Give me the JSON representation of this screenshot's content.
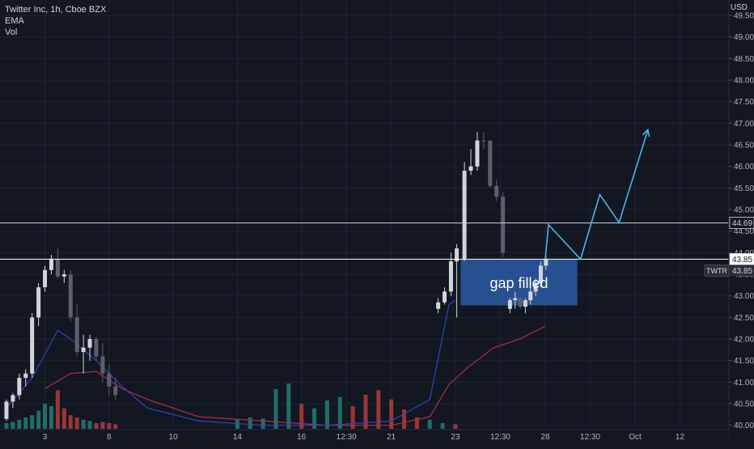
{
  "header": {
    "symbol_line": "Twitter Inc, 1h, Cboe BZX",
    "indicator_ema": "EMA",
    "indicator_vol": "Vol"
  },
  "price_scale": {
    "currency": "USD",
    "ticks": [
      "49.50",
      "49.00",
      "48.50",
      "48.00",
      "47.50",
      "47.00",
      "46.50",
      "46.00",
      "45.50",
      "45.00",
      "44.50",
      "44.00",
      "43.50",
      "43.00",
      "42.50",
      "42.00",
      "41.50",
      "41.00",
      "40.50",
      "40.00"
    ]
  },
  "time_axis": {
    "ticks": [
      {
        "label": "3",
        "t": 6
      },
      {
        "label": "8",
        "t": 16
      },
      {
        "label": "10",
        "t": 26
      },
      {
        "label": "14",
        "t": 36
      },
      {
        "label": "16",
        "t": 46
      },
      {
        "label": "12:30",
        "t": 53
      },
      {
        "label": "21",
        "t": 60
      },
      {
        "label": "23",
        "t": 70
      },
      {
        "label": "12:30",
        "t": 77
      },
      {
        "label": "28",
        "t": 84
      },
      {
        "label": "12:30",
        "t": 91
      },
      {
        "label": "Oct",
        "t": 98
      },
      {
        "label": "12",
        "t": 105
      }
    ]
  },
  "price_lines": [
    {
      "value": 44.69,
      "label": "44.69",
      "color": "#d1d4dc"
    },
    {
      "value": 43.85,
      "label": "43.85",
      "color": "#ffffff"
    }
  ],
  "ticker_badge": {
    "symbol": "TWTR",
    "value": "43.85"
  },
  "annotation": {
    "text": "gap filled",
    "t0": 70.8,
    "t1": 89.0,
    "p_top": 43.85,
    "p_bottom": 42.78,
    "fill": "#2b5aa3"
  },
  "chart_data": {
    "type": "candlestick",
    "y_range": [
      39.92,
      49.82
    ],
    "x_range": [
      -0.5,
      112
    ],
    "candles": [
      [
        40.15,
        40.6,
        40.1,
        40.55,
        "up"
      ],
      [
        40.55,
        40.75,
        40.4,
        40.7,
        "up"
      ],
      [
        40.7,
        41.2,
        40.6,
        41.1,
        "up"
      ],
      [
        41.1,
        41.3,
        40.9,
        41.2,
        "up"
      ],
      [
        41.2,
        42.6,
        41.1,
        42.5,
        "up"
      ],
      [
        42.5,
        43.3,
        42.3,
        43.2,
        "up"
      ],
      [
        43.2,
        43.7,
        43.1,
        43.6,
        "up"
      ],
      [
        43.6,
        43.95,
        43.5,
        43.85,
        "up"
      ],
      [
        43.85,
        44.1,
        43.4,
        43.45,
        "down"
      ],
      [
        43.45,
        43.6,
        43.3,
        43.5,
        "up"
      ],
      [
        43.5,
        43.6,
        42.4,
        42.5,
        "down"
      ],
      [
        42.5,
        42.8,
        41.6,
        41.7,
        "down"
      ],
      [
        41.7,
        42.1,
        41.2,
        41.8,
        "up"
      ],
      [
        41.8,
        42.1,
        41.5,
        42.0,
        "up"
      ],
      [
        42.0,
        42.05,
        41.5,
        41.6,
        "down"
      ],
      [
        41.6,
        41.9,
        41.0,
        41.2,
        "down"
      ],
      [
        41.2,
        41.4,
        40.7,
        40.9,
        "down"
      ],
      [
        40.9,
        41.1,
        40.6,
        40.7,
        "down"
      ]
    ],
    "gap_candles": [
      [
        42.7,
        42.95,
        42.6,
        42.9,
        "up"
      ],
      [
        42.9,
        43.1,
        42.7,
        42.95,
        "up"
      ],
      [
        42.95,
        43.0,
        42.7,
        42.75,
        "down"
      ],
      [
        42.75,
        42.95,
        42.6,
        42.9,
        "up"
      ],
      [
        42.9,
        43.2,
        42.8,
        43.1,
        "up"
      ],
      [
        43.1,
        43.4,
        43.0,
        43.3,
        "up"
      ],
      [
        43.3,
        43.8,
        43.2,
        43.7,
        "up"
      ],
      [
        43.7,
        43.95,
        43.6,
        43.85,
        "up"
      ]
    ],
    "ema": [
      [
        0,
        40.4
      ],
      [
        4,
        41.1
      ],
      [
        8,
        42.2
      ],
      [
        10,
        42.0
      ],
      [
        14,
        41.5
      ],
      [
        18,
        40.9
      ],
      [
        22,
        40.4
      ],
      [
        30,
        40.1
      ],
      [
        40,
        40.0
      ],
      [
        50,
        40.0
      ],
      [
        60,
        40.1
      ],
      [
        66,
        40.6
      ],
      [
        69,
        42.8
      ],
      [
        70,
        42.9
      ]
    ],
    "ema_gap": [
      [
        72,
        42.9
      ],
      [
        74,
        43.2
      ],
      [
        78,
        43.3
      ],
      [
        82,
        43.6
      ],
      [
        84,
        43.85
      ]
    ],
    "slow_ma": [
      [
        6,
        40.85
      ],
      [
        10,
        41.2
      ],
      [
        14,
        41.25
      ],
      [
        18,
        40.85
      ],
      [
        22,
        40.6
      ],
      [
        30,
        40.2
      ],
      [
        40,
        40.1
      ],
      [
        50,
        40.0
      ],
      [
        60,
        40.0
      ],
      [
        66,
        40.2
      ],
      [
        69,
        40.95
      ],
      [
        72,
        41.35
      ],
      [
        76,
        41.8
      ],
      [
        80,
        42.0
      ],
      [
        84,
        42.3
      ]
    ],
    "forecast_path": [
      [
        84,
        43.85
      ],
      [
        84.5,
        44.65
      ],
      [
        89.5,
        43.85
      ],
      [
        92.5,
        45.35
      ],
      [
        95.5,
        44.7
      ],
      [
        100,
        46.85
      ]
    ],
    "volume": [
      [
        0.05,
        "up"
      ],
      [
        0.06,
        "up"
      ],
      [
        0.08,
        "up"
      ],
      [
        0.1,
        "up"
      ],
      [
        0.12,
        "up"
      ],
      [
        0.16,
        "up"
      ],
      [
        0.22,
        "up"
      ],
      [
        0.2,
        "up"
      ],
      [
        0.34,
        "down"
      ],
      [
        0.18,
        "down"
      ],
      [
        0.12,
        "down"
      ],
      [
        0.1,
        "down"
      ],
      [
        0.08,
        "up"
      ],
      [
        0.07,
        "up"
      ],
      [
        0.05,
        "down"
      ],
      [
        0.06,
        "down"
      ],
      [
        0.05,
        "down"
      ],
      [
        0.04,
        "down"
      ],
      [
        0.08,
        "up"
      ],
      [
        0.1,
        "up"
      ],
      [
        0.09,
        "up"
      ],
      [
        0.35,
        "up"
      ],
      [
        0.4,
        "up"
      ],
      [
        0.22,
        "down"
      ],
      [
        0.18,
        "up"
      ],
      [
        0.25,
        "up"
      ],
      [
        0.28,
        "up"
      ],
      [
        0.2,
        "down"
      ],
      [
        0.3,
        "down"
      ],
      [
        0.34,
        "down"
      ],
      [
        0.26,
        "down"
      ],
      [
        0.17,
        "down"
      ],
      [
        0.1,
        "down"
      ],
      [
        0.08,
        "up"
      ],
      [
        0.05,
        "up"
      ],
      [
        0.04,
        "down"
      ]
    ]
  }
}
